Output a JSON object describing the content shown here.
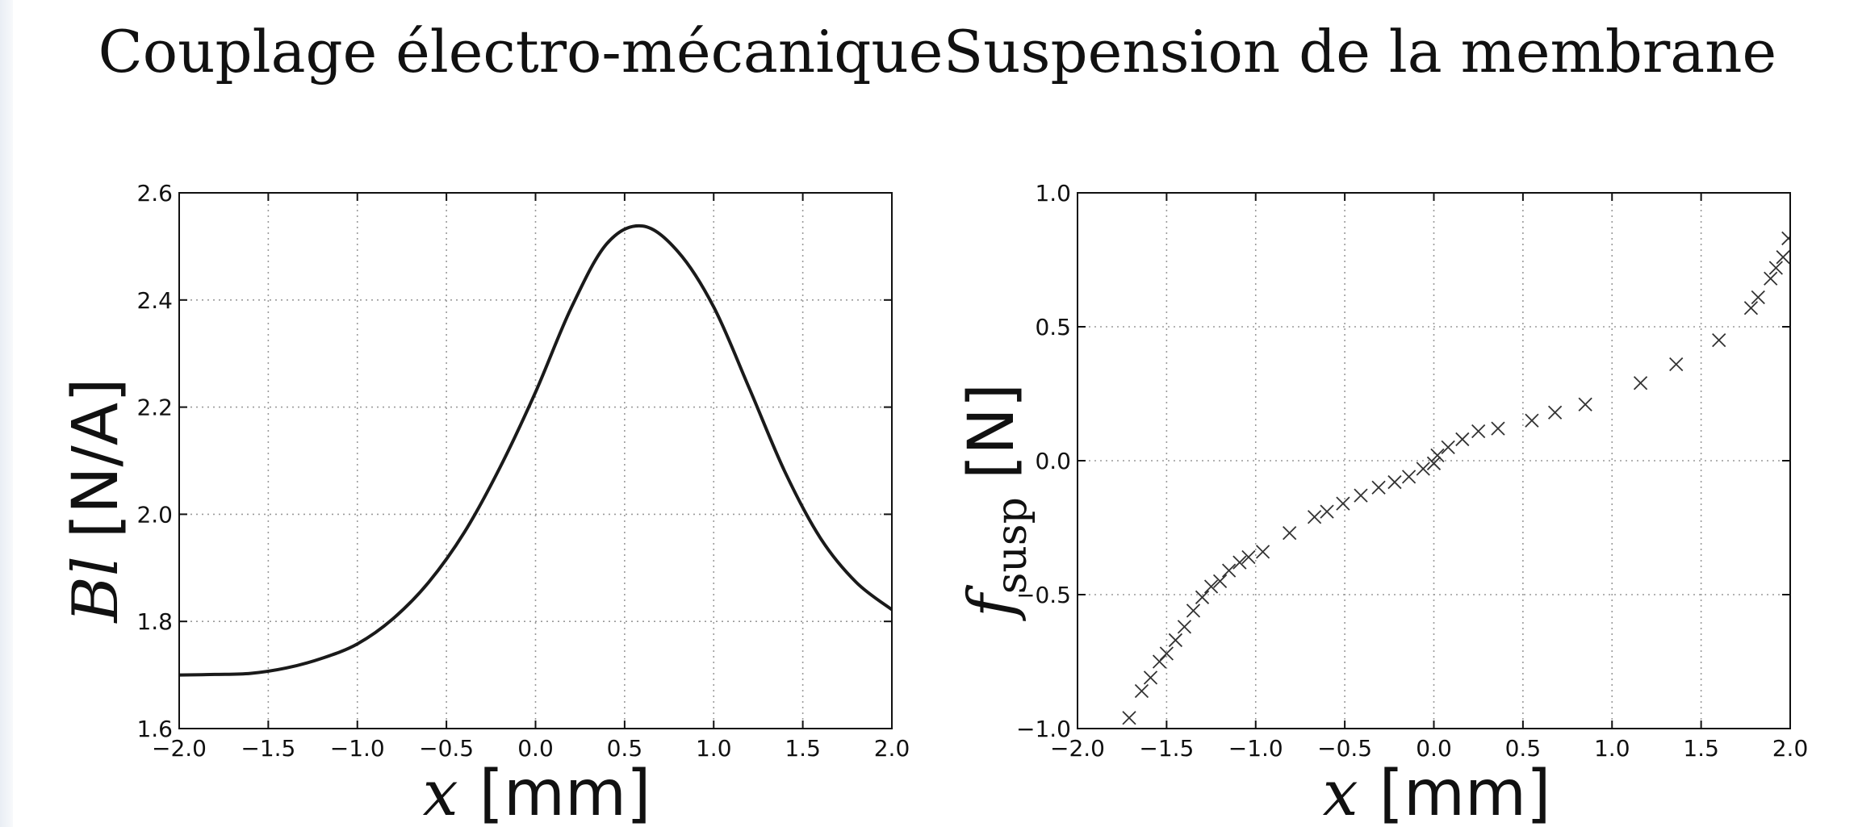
{
  "chart_data": [
    {
      "type": "line",
      "title": "Couplage électro-mécanique",
      "xlabel": {
        "symbol": "x",
        "unit": "[mm]"
      },
      "ylabel": {
        "symbol": "Bl",
        "unit": "[N/A]"
      },
      "xlim": [
        -2.0,
        2.0
      ],
      "ylim": [
        1.6,
        2.6
      ],
      "xticks": [
        "−2.0",
        "−1.5",
        "−1.0",
        "−0.5",
        "0.0",
        "0.5",
        "1.0",
        "1.5",
        "2.0"
      ],
      "yticks": [
        "1.6",
        "1.8",
        "2.0",
        "2.2",
        "2.4",
        "2.6"
      ],
      "grid": true,
      "series": [
        {
          "color": "#1a1a1a",
          "x": [
            -2.0,
            -1.8,
            -1.6,
            -1.4,
            -1.2,
            -1.0,
            -0.8,
            -0.6,
            -0.4,
            -0.2,
            0.0,
            0.2,
            0.4,
            0.6,
            0.8,
            1.0,
            1.2,
            1.4,
            1.6,
            1.8,
            2.0
          ],
          "y": [
            1.7,
            1.701,
            1.703,
            1.713,
            1.731,
            1.758,
            1.805,
            1.873,
            1.966,
            2.087,
            2.228,
            2.385,
            2.505,
            2.538,
            2.49,
            2.387,
            2.235,
            2.079,
            1.955,
            1.873,
            1.822
          ]
        }
      ]
    },
    {
      "type": "scatter",
      "title": "Suspension de la membrane",
      "xlabel": {
        "symbol": "x",
        "unit": "[mm]"
      },
      "ylabel": {
        "symbol": "f",
        "subscript": "susp",
        "unit": "[N]"
      },
      "xlim": [
        -2.0,
        2.0
      ],
      "ylim": [
        -1.0,
        1.0
      ],
      "xticks": [
        "−2.0",
        "−1.5",
        "−1.0",
        "−0.5",
        "0.0",
        "0.5",
        "1.0",
        "1.5",
        "2.0"
      ],
      "yticks": [
        "−1.0",
        "−0.5",
        "0.0",
        "0.5",
        "1.0"
      ],
      "grid": true,
      "series": [
        {
          "marker": "x",
          "color": "#333333",
          "x": [
            -1.71,
            -1.64,
            -1.59,
            -1.54,
            -1.5,
            -1.45,
            -1.4,
            -1.35,
            -1.3,
            -1.25,
            -1.2,
            -1.15,
            -1.09,
            -1.04,
            -0.96,
            -0.81,
            -0.67,
            -0.6,
            -0.51,
            -0.41,
            -0.31,
            -0.22,
            -0.14,
            -0.06,
            0.0,
            0.02,
            0.08,
            0.16,
            0.25,
            0.36,
            0.55,
            0.68,
            0.85,
            1.16,
            1.36,
            1.6,
            1.78,
            1.82,
            1.89,
            1.92,
            1.96,
            1.99
          ],
          "y": [
            -0.96,
            -0.86,
            -0.81,
            -0.75,
            -0.72,
            -0.67,
            -0.62,
            -0.56,
            -0.51,
            -0.47,
            -0.45,
            -0.41,
            -0.38,
            -0.36,
            -0.34,
            -0.27,
            -0.21,
            -0.19,
            -0.16,
            -0.13,
            -0.1,
            -0.08,
            -0.06,
            -0.03,
            -0.01,
            0.02,
            0.05,
            0.08,
            0.11,
            0.12,
            0.15,
            0.18,
            0.21,
            0.29,
            0.36,
            0.45,
            0.57,
            0.61,
            0.68,
            0.72,
            0.76,
            0.83
          ]
        }
      ]
    }
  ]
}
